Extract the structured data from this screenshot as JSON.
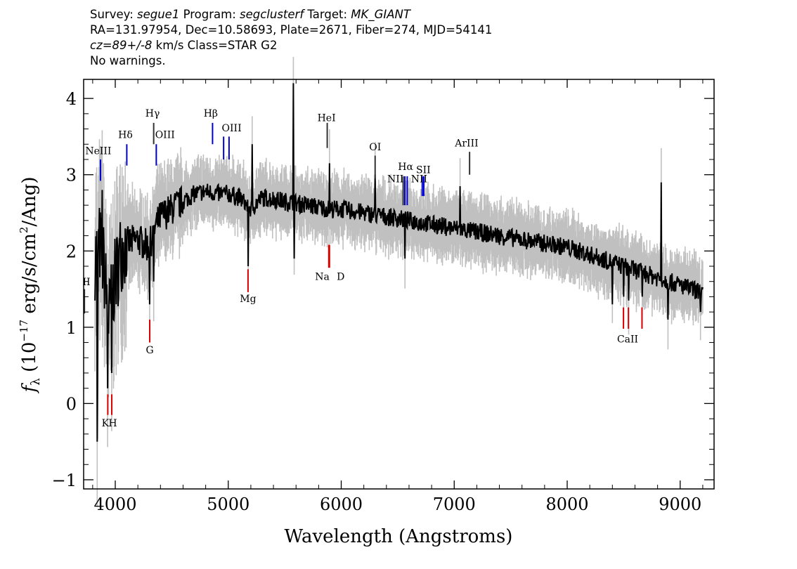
{
  "header": {
    "line1": {
      "survey_label": "Survey: ",
      "survey": "segue1",
      "program_label": " Program: ",
      "program": "segclusterf",
      "target_label": " Target: ",
      "target": "MK_GIANT"
    },
    "line2": "RA=131.97954, Dec=10.58693, Plate=2671, Fiber=274, MJD=54141",
    "line3": {
      "cz": "cz=89+/-8",
      "rest": " km/s Class=STAR G2"
    },
    "line4": "No warnings."
  },
  "colors": {
    "flux": "#000000",
    "error_band": "#c0c0c0",
    "emission_marker": "#0000cc",
    "absorption_marker": "#dd0000",
    "sky_marker": "#333333"
  },
  "chart_data": {
    "type": "line",
    "xlabel": "Wavelength (Angstroms)",
    "ylabel": "f_λ (10^-17 erg/s/cm^2/Ang)",
    "ylabel_parts": {
      "f": "f",
      "lambda": "λ",
      "paren_open": " (10",
      "exp1": "−17",
      "unit": " erg/s/cm",
      "exp2": "2",
      "tail": "/Ang)"
    },
    "xlim": [
      3720,
      9300
    ],
    "ylim": [
      -1.12,
      4.25
    ],
    "xticks": [
      4000,
      5000,
      6000,
      7000,
      8000,
      9000
    ],
    "yticks": [
      -1,
      0,
      1,
      2,
      3,
      4
    ],
    "ytick_labels": [
      "−1",
      "0",
      "1",
      "2",
      "3",
      "4"
    ],
    "continuum_points": [
      {
        "x": 3820,
        "y": 1.9
      },
      {
        "x": 3860,
        "y": 2.1
      },
      {
        "x": 3900,
        "y": 1.8
      },
      {
        "x": 3940,
        "y": 1.1
      },
      {
        "x": 3980,
        "y": 1.5
      },
      {
        "x": 4050,
        "y": 2.0
      },
      {
        "x": 4100,
        "y": 2.1
      },
      {
        "x": 4200,
        "y": 2.15
      },
      {
        "x": 4300,
        "y": 2.05
      },
      {
        "x": 4350,
        "y": 2.3
      },
      {
        "x": 4400,
        "y": 2.45
      },
      {
        "x": 4500,
        "y": 2.55
      },
      {
        "x": 4600,
        "y": 2.65
      },
      {
        "x": 4700,
        "y": 2.75
      },
      {
        "x": 4800,
        "y": 2.78
      },
      {
        "x": 4900,
        "y": 2.75
      },
      {
        "x": 5000,
        "y": 2.75
      },
      {
        "x": 5100,
        "y": 2.7
      },
      {
        "x": 5200,
        "y": 2.55
      },
      {
        "x": 5300,
        "y": 2.7
      },
      {
        "x": 5400,
        "y": 2.68
      },
      {
        "x": 5500,
        "y": 2.65
      },
      {
        "x": 5700,
        "y": 2.6
      },
      {
        "x": 5900,
        "y": 2.55
      },
      {
        "x": 6000,
        "y": 2.55
      },
      {
        "x": 6200,
        "y": 2.5
      },
      {
        "x": 6400,
        "y": 2.45
      },
      {
        "x": 6600,
        "y": 2.4
      },
      {
        "x": 6800,
        "y": 2.35
      },
      {
        "x": 7000,
        "y": 2.3
      },
      {
        "x": 7200,
        "y": 2.25
      },
      {
        "x": 7400,
        "y": 2.2
      },
      {
        "x": 7600,
        "y": 2.15
      },
      {
        "x": 7800,
        "y": 2.1
      },
      {
        "x": 8000,
        "y": 2.05
      },
      {
        "x": 8200,
        "y": 1.95
      },
      {
        "x": 8400,
        "y": 1.85
      },
      {
        "x": 8600,
        "y": 1.75
      },
      {
        "x": 8800,
        "y": 1.65
      },
      {
        "x": 9000,
        "y": 1.55
      },
      {
        "x": 9200,
        "y": 1.45
      }
    ],
    "features": [
      {
        "x": 3840,
        "y": -0.5
      },
      {
        "x": 3843,
        "y": 0.3
      },
      {
        "x": 3885,
        "y": 2.8
      },
      {
        "x": 3933,
        "y": 0.2
      },
      {
        "x": 3968,
        "y": 0.4
      },
      {
        "x": 4101,
        "y": 1.7
      },
      {
        "x": 4305,
        "y": 1.3
      },
      {
        "x": 4340,
        "y": 1.6
      },
      {
        "x": 5175,
        "y": 1.8
      },
      {
        "x": 5210,
        "y": 3.4
      },
      {
        "x": 5577,
        "y": 4.2
      },
      {
        "x": 5585,
        "y": 1.9
      },
      {
        "x": 5895,
        "y": 3.15
      },
      {
        "x": 6300,
        "y": 3.0
      },
      {
        "x": 6563,
        "y": 1.9
      },
      {
        "x": 7050,
        "y": 2.85
      },
      {
        "x": 8400,
        "y": 1.3
      },
      {
        "x": 8500,
        "y": 1.4
      },
      {
        "x": 8545,
        "y": 1.35
      },
      {
        "x": 8665,
        "y": 1.4
      },
      {
        "x": 8830,
        "y": 2.9
      },
      {
        "x": 8890,
        "y": 1.1
      },
      {
        "x": 9180,
        "y": 1.2
      }
    ],
    "lines": [
      {
        "label": "NeIII",
        "x": 3869,
        "y1": 2.92,
        "y2": 3.2,
        "kind": "emission",
        "lx": 3850,
        "ly": 3.27
      },
      {
        "label": "Hδ",
        "x": 4102,
        "y1": 3.12,
        "y2": 3.4,
        "kind": "emission",
        "lx": 4090,
        "ly": 3.48
      },
      {
        "label": "Hγ",
        "x": 4340,
        "y1": 3.4,
        "y2": 3.68,
        "kind": "sky",
        "lx": 4330,
        "ly": 3.76
      },
      {
        "label": "OIII",
        "x": 4363,
        "y1": 3.12,
        "y2": 3.4,
        "kind": "emission",
        "lx": 4440,
        "ly": 3.48
      },
      {
        "label": "Hβ",
        "x": 4861,
        "y1": 3.4,
        "y2": 3.68,
        "kind": "emission",
        "lx": 4845,
        "ly": 3.76
      },
      {
        "label": "OIII",
        "x": 4959,
        "y1": 3.2,
        "y2": 3.5,
        "kind": "emission",
        "lx": 5030,
        "ly": 3.57
      },
      {
        "label": "",
        "x": 5007,
        "y1": 3.2,
        "y2": 3.5,
        "kind": "emission",
        "lx": 0,
        "ly": 0
      },
      {
        "label": "HeI",
        "x": 5876,
        "y1": 3.35,
        "y2": 3.68,
        "kind": "sky",
        "lx": 5870,
        "ly": 3.7
      },
      {
        "label": "OI",
        "x": 6300,
        "y1": 2.95,
        "y2": 3.25,
        "kind": "sky",
        "lx": 6300,
        "ly": 3.32
      },
      {
        "label": "NII",
        "x": 6548,
        "y1": 2.6,
        "y2": 2.98,
        "kind": "sky",
        "lx": 6480,
        "ly": 2.9
      },
      {
        "label": "Hα",
        "x": 6563,
        "y1": 2.6,
        "y2": 2.98,
        "kind": "emission",
        "lx": 6570,
        "ly": 3.06
      },
      {
        "label": "",
        "x": 6584,
        "y1": 2.6,
        "y2": 2.98,
        "kind": "emission",
        "lx": 0,
        "ly": 0
      },
      {
        "label": "SII",
        "x": 6717,
        "y1": 2.72,
        "y2": 2.98,
        "kind": "emission",
        "lx": 6727,
        "ly": 3.02
      },
      {
        "label": "NII",
        "x": 6731,
        "y1": 2.72,
        "y2": 2.98,
        "kind": "emission",
        "lx": 6690,
        "ly": 2.9
      },
      {
        "label": "ArIII",
        "x": 7136,
        "y1": 3.0,
        "y2": 3.3,
        "kind": "sky",
        "lx": 7110,
        "ly": 3.37
      },
      {
        "label": "K",
        "x": 3934,
        "y1": -0.15,
        "y2": 0.12,
        "kind": "absorption",
        "lx": 3912,
        "ly": -0.3
      },
      {
        "label": "H",
        "x": 3969,
        "y1": -0.15,
        "y2": 0.12,
        "kind": "absorption",
        "lx": 3978,
        "ly": -0.3
      },
      {
        "label": "G",
        "x": 4305,
        "y1": 0.8,
        "y2": 1.1,
        "kind": "absorption",
        "lx": 4305,
        "ly": 0.66
      },
      {
        "label": "Mg",
        "x": 5175,
        "y1": 1.46,
        "y2": 1.76,
        "kind": "absorption",
        "lx": 5175,
        "ly": 1.33
      },
      {
        "label": "Na",
        "x": 5890,
        "y1": 1.78,
        "y2": 2.08,
        "kind": "absorption",
        "lx": 5832,
        "ly": 1.62
      },
      {
        "label": "D",
        "x": 5896,
        "y1": 1.78,
        "y2": 2.08,
        "kind": "absorption",
        "lx": 5995,
        "ly": 1.62
      },
      {
        "label": "CaII",
        "x": 8498,
        "y1": 0.98,
        "y2": 1.26,
        "kind": "absorption",
        "lx": 8535,
        "ly": 0.8
      },
      {
        "label": "",
        "x": 8542,
        "y1": 0.98,
        "y2": 1.26,
        "kind": "absorption",
        "lx": 0,
        "ly": 0
      },
      {
        "label": "",
        "x": 8662,
        "y1": 0.98,
        "y2": 1.26,
        "kind": "absorption",
        "lx": 0,
        "ly": 0
      },
      {
        "label": "II",
        "x": 3727,
        "y1": 1.18,
        "y2": 1.5,
        "kind": "sky",
        "lx": 3745,
        "ly": 1.55
      }
    ]
  }
}
